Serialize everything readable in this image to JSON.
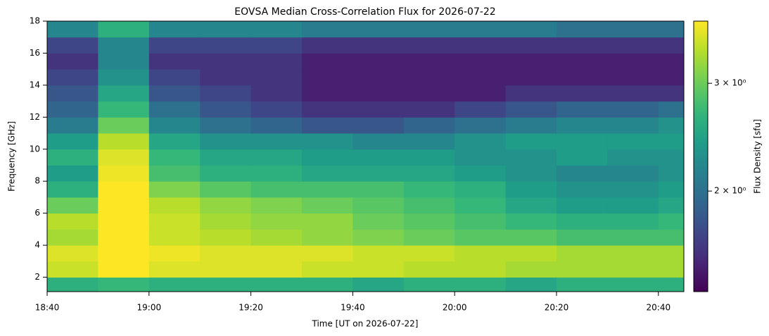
{
  "chart_data": {
    "type": "heatmap",
    "title": "EOVSA Median Cross-Correlation Flux for 2026-07-22",
    "xlabel": "Time [UT on 2026-07-22]",
    "ylabel": "Frequency [GHz]",
    "colorbar_label": "Flux Density [sfu]",
    "colormap": "viridis",
    "color_log": true,
    "x_edges": [
      "18:40",
      "18:50",
      "19:00",
      "19:10",
      "19:20",
      "19:30",
      "19:40",
      "19:50",
      "20:00",
      "20:10",
      "20:20",
      "20:30",
      "20:40",
      "20:45"
    ],
    "y_edges": [
      1,
      2,
      3,
      4,
      5,
      6,
      7,
      8,
      9,
      10,
      11,
      12,
      13,
      14,
      15,
      16,
      17,
      18
    ],
    "z": [
      [
        2.6,
        2.7,
        2.6,
        2.6,
        2.6,
        2.6,
        2.5,
        2.6,
        2.6,
        2.5,
        2.6,
        2.6,
        2.6
      ],
      [
        3.5,
        3.8,
        3.6,
        3.6,
        3.6,
        3.5,
        3.5,
        3.4,
        3.4,
        3.3,
        3.3,
        3.3,
        3.3
      ],
      [
        3.6,
        3.8,
        3.7,
        3.6,
        3.6,
        3.6,
        3.5,
        3.5,
        3.4,
        3.4,
        3.3,
        3.3,
        3.3
      ],
      [
        3.3,
        3.8,
        3.5,
        3.4,
        3.3,
        3.2,
        3.1,
        3.0,
        2.9,
        2.9,
        2.8,
        2.8,
        2.8
      ],
      [
        3.4,
        3.8,
        3.5,
        3.3,
        3.2,
        3.2,
        3.0,
        2.9,
        2.8,
        2.7,
        2.6,
        2.6,
        2.7
      ],
      [
        3.0,
        3.8,
        3.4,
        3.2,
        3.1,
        3.0,
        2.9,
        2.8,
        2.7,
        2.5,
        2.4,
        2.4,
        2.5
      ],
      [
        2.6,
        3.8,
        3.1,
        2.9,
        2.8,
        2.8,
        2.8,
        2.7,
        2.6,
        2.4,
        2.3,
        2.3,
        2.4
      ],
      [
        2.4,
        3.7,
        2.8,
        2.6,
        2.6,
        2.5,
        2.5,
        2.5,
        2.4,
        2.3,
        2.2,
        2.2,
        2.3
      ],
      [
        2.6,
        3.6,
        2.7,
        2.5,
        2.5,
        2.4,
        2.4,
        2.4,
        2.3,
        2.3,
        2.4,
        2.3,
        2.3
      ],
      [
        2.4,
        3.4,
        2.5,
        2.3,
        2.3,
        2.3,
        2.2,
        2.2,
        2.3,
        2.4,
        2.4,
        2.4,
        2.4
      ],
      [
        2.1,
        3.0,
        2.2,
        2.0,
        1.9,
        1.8,
        1.8,
        1.9,
        2.0,
        2.1,
        2.2,
        2.2,
        2.3
      ],
      [
        1.9,
        2.7,
        2.0,
        1.8,
        1.7,
        1.6,
        1.6,
        1.6,
        1.7,
        1.8,
        1.9,
        1.9,
        2.0
      ],
      [
        1.8,
        2.5,
        1.8,
        1.7,
        1.6,
        1.5,
        1.5,
        1.5,
        1.5,
        1.6,
        1.6,
        1.6,
        1.6
      ],
      [
        1.7,
        2.3,
        1.7,
        1.6,
        1.6,
        1.5,
        1.5,
        1.5,
        1.5,
        1.5,
        1.5,
        1.5,
        1.5
      ],
      [
        1.6,
        2.2,
        1.6,
        1.6,
        1.6,
        1.5,
        1.5,
        1.5,
        1.5,
        1.5,
        1.5,
        1.5,
        1.5
      ],
      [
        1.7,
        2.2,
        1.7,
        1.7,
        1.7,
        1.6,
        1.6,
        1.6,
        1.6,
        1.6,
        1.6,
        1.6,
        1.6
      ],
      [
        2.2,
        2.6,
        2.2,
        2.2,
        2.2,
        2.1,
        2.1,
        2.1,
        2.1,
        2.1,
        2.0,
        2.0,
        2.0
      ]
    ],
    "xlim": [
      "18:40",
      "20:45"
    ],
    "ylim": [
      1.1,
      18
    ],
    "xticks": [
      "18:40",
      "19:00",
      "19:20",
      "19:40",
      "20:00",
      "20:20",
      "20:40"
    ],
    "yticks": [
      2,
      4,
      6,
      8,
      10,
      12,
      14,
      16,
      18
    ],
    "clim": [
      1.37,
      3.79
    ],
    "cticks": [
      {
        "value": 3,
        "label": "3 × 10⁰"
      },
      {
        "value": 2,
        "label": "2 × 10⁰"
      }
    ]
  }
}
